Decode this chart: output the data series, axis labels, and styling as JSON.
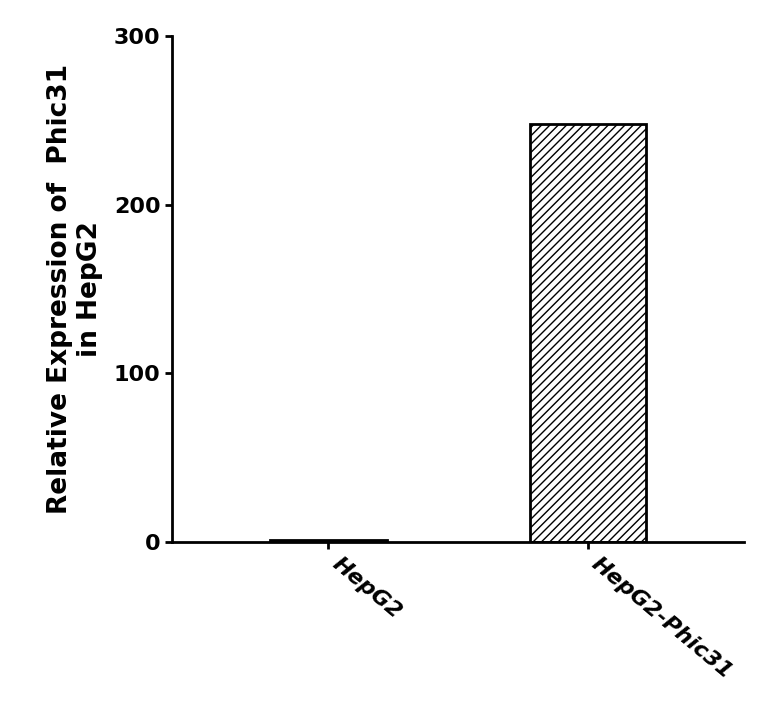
{
  "categories": [
    "HepG2",
    "HepG2-Phic31"
  ],
  "values": [
    1.0,
    248.0
  ],
  "bar_colors": [
    "#ffffff",
    "#ffffff"
  ],
  "bar_edgecolors": [
    "#000000",
    "#000000"
  ],
  "hatch": [
    "",
    "////"
  ],
  "ylabel_line1": "Relative Expression of  Phic31",
  "ylabel_line2": "in HepG2",
  "ylim": [
    0,
    300
  ],
  "yticks": [
    0,
    100,
    200,
    300
  ],
  "tick_fontsize": 16,
  "label_fontsize": 19,
  "label_fontweight": "bold",
  "bar_width": 0.45,
  "figsize": [
    7.83,
    7.22
  ],
  "dpi": 100,
  "background_color": "#ffffff",
  "spine_linewidth": 2.0,
  "tick_linewidth": 2.0,
  "xtick_rotation": -40,
  "xtick_fontsize": 16,
  "xtick_fontstyle": "italic",
  "xtick_fontweight": "bold"
}
